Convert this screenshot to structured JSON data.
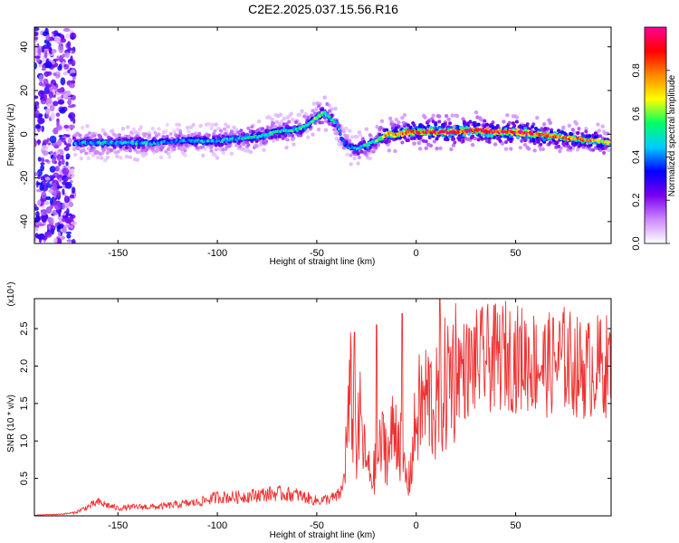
{
  "title": "C2E2.2025.037.15.56.R16",
  "chart_data": [
    {
      "type": "heatmap",
      "xlabel": "Height of straight line (km)",
      "ylabel": "Frequency (Hz)",
      "xlim": [
        -192,
        98
      ],
      "ylim": [
        -50,
        49
      ],
      "xticks": [
        -150,
        -100,
        -50,
        0,
        50
      ],
      "yticks": [
        -40,
        -20,
        0,
        20,
        40
      ],
      "colorbar": {
        "label": "Normalized spectral amplitude",
        "range": [
          0,
          1
        ],
        "ticks": [
          "0.0",
          "0.2",
          "0.4",
          "0.6",
          "0.8"
        ],
        "colors": [
          "#ffffff",
          "#cc88ff",
          "#7700ee",
          "#0000ff",
          "#00ccff",
          "#00ff66",
          "#ffff00",
          "#ff8800",
          "#ff0000",
          "#ff0099"
        ]
      },
      "ridge": {
        "x": [
          -172,
          -160,
          -150,
          -140,
          -130,
          -120,
          -110,
          -100,
          -90,
          -80,
          -70,
          -60,
          -55,
          -50,
          -46,
          -43,
          -40,
          -37,
          -34,
          -30,
          -25,
          -20,
          -15,
          -10,
          -5,
          0,
          10,
          20,
          30,
          40,
          50,
          60,
          70,
          80,
          90,
          97
        ],
        "y": [
          -4,
          -4,
          -4,
          -4,
          -4,
          -3,
          -3,
          -3,
          -2,
          -1,
          1,
          2,
          4,
          8,
          10,
          7,
          5,
          -3,
          -6,
          -7,
          -5,
          -3,
          0,
          0,
          1,
          1,
          1,
          1,
          2,
          1,
          1,
          0,
          -1,
          -2,
          -3,
          -4
        ],
        "amplitude": [
          0.4,
          0.45,
          0.45,
          0.45,
          0.4,
          0.4,
          0.45,
          0.45,
          0.45,
          0.5,
          0.5,
          0.5,
          0.5,
          0.6,
          0.55,
          0.5,
          0.45,
          0.35,
          0.4,
          0.45,
          0.5,
          0.55,
          0.7,
          0.8,
          0.85,
          0.9,
          0.95,
          0.9,
          0.95,
          0.9,
          0.9,
          0.85,
          0.8,
          0.75,
          0.7,
          0.6
        ]
      },
      "noise_region": [
        -192,
        -172
      ]
    },
    {
      "type": "line",
      "xlabel": "Height of straight line (km)",
      "ylabel": "SNR (10 * v/v)",
      "yunit": "(x10⁴)",
      "xlim": [
        -192,
        98
      ],
      "ylim": [
        0,
        2.9
      ],
      "xticks": [
        -150,
        -100,
        -50,
        0,
        50
      ],
      "yticks": [
        0.5,
        1.0,
        1.5,
        2.0,
        2.5
      ],
      "yticklabels": [
        "0.5",
        "1.0",
        "1.5",
        "2.0",
        "2.5"
      ],
      "color": "#ee3333",
      "series": [
        {
          "x": [
            -192,
            -180,
            -172,
            -165,
            -160,
            -150,
            -140,
            -130,
            -120,
            -110,
            -100,
            -90,
            -80,
            -70,
            -60,
            -50,
            -45,
            -40,
            -37,
            -35,
            -33,
            -31,
            -30,
            -28,
            -26,
            -24,
            -22,
            -20,
            -18,
            -16,
            -14,
            -12,
            -10,
            -8,
            -6,
            -4,
            -2,
            0,
            2,
            4,
            6,
            8,
            10,
            12,
            14,
            16,
            18,
            20,
            25,
            30,
            35,
            40,
            45,
            50,
            55,
            60,
            65,
            70,
            75,
            80,
            85,
            90,
            95,
            98
          ],
          "y": [
            0.01,
            0.02,
            0.04,
            0.12,
            0.18,
            0.1,
            0.12,
            0.12,
            0.15,
            0.18,
            0.25,
            0.25,
            0.28,
            0.3,
            0.28,
            0.2,
            0.22,
            0.25,
            0.35,
            1.0,
            1.6,
            1.2,
            0.9,
            1.3,
            0.8,
            0.6,
            0.5,
            0.7,
            0.9,
            1.0,
            0.8,
            1.1,
            1.2,
            1.0,
            0.6,
            0.4,
            0.8,
            1.3,
            1.45,
            1.5,
            1.6,
            1.5,
            1.45,
            1.55,
            1.7,
            1.8,
            1.95,
            2.0,
            1.95,
            2.05,
            2.1,
            2.1,
            2.15,
            2.1,
            2.1,
            2.05,
            2.0,
            2.05,
            2.1,
            2.0,
            1.95,
            2.0,
            2.0,
            2.05
          ],
          "spikes": [
            {
              "x": -31,
              "y": 2.45
            },
            {
              "x": -20,
              "y": 2.55
            },
            {
              "x": -7,
              "y": 2.7
            },
            {
              "x": 12,
              "y": 2.9
            }
          ]
        }
      ]
    }
  ]
}
